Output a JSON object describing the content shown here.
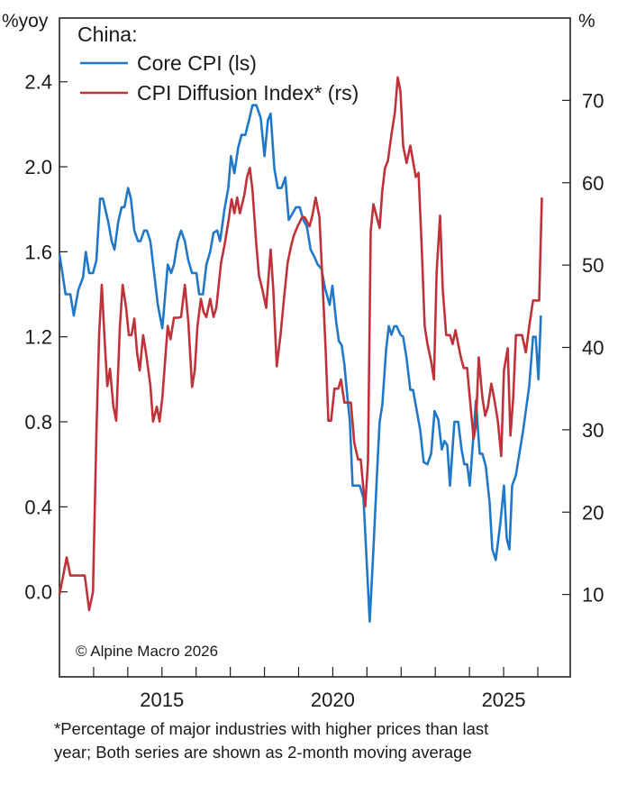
{
  "chart_data": {
    "type": "line",
    "title": "China:",
    "left_axis_unit": "%yoy",
    "right_axis_unit": "%",
    "left_ylim": [
      -0.4,
      2.7
    ],
    "right_ylim": [
      0,
      80
    ],
    "xlim": [
      2012.0,
      2026.95
    ],
    "left_ticks": [
      "0.0",
      "0.4",
      "0.8",
      "1.2",
      "1.6",
      "2.0",
      "2.4"
    ],
    "left_tick_values": [
      0.0,
      0.4,
      0.8,
      1.2,
      1.6,
      2.0,
      2.4
    ],
    "right_ticks": [
      "10",
      "20",
      "30",
      "40",
      "50",
      "60",
      "70"
    ],
    "right_tick_values": [
      10,
      20,
      30,
      40,
      50,
      60,
      70
    ],
    "x_minor_ticks": [
      2013,
      2014,
      2015,
      2016,
      2017,
      2018,
      2019,
      2020,
      2021,
      2022,
      2023,
      2024,
      2025,
      2026
    ],
    "x_labels": [
      {
        "year": 2015,
        "label": "2015"
      },
      {
        "year": 2020,
        "label": "2020"
      },
      {
        "year": 2025,
        "label": "2025"
      }
    ],
    "grid": false,
    "legend_position": "top-left",
    "copyright": "© Alpine Macro 2026",
    "series": [
      {
        "name": "Core CPI (ls)",
        "axis": "left",
        "color": "#1f78c8",
        "points": [
          [
            2012.0,
            1.59
          ],
          [
            2012.18,
            1.4
          ],
          [
            2012.32,
            1.4
          ],
          [
            2012.42,
            1.3
          ],
          [
            2012.55,
            1.42
          ],
          [
            2012.69,
            1.48
          ],
          [
            2012.77,
            1.6
          ],
          [
            2012.87,
            1.5
          ],
          [
            2012.98,
            1.5
          ],
          [
            2013.08,
            1.56
          ],
          [
            2013.19,
            1.85
          ],
          [
            2013.27,
            1.85
          ],
          [
            2013.43,
            1.74
          ],
          [
            2013.53,
            1.65
          ],
          [
            2013.61,
            1.61
          ],
          [
            2013.72,
            1.74
          ],
          [
            2013.82,
            1.81
          ],
          [
            2013.9,
            1.81
          ],
          [
            2014.01,
            1.9
          ],
          [
            2014.09,
            1.85
          ],
          [
            2014.19,
            1.7
          ],
          [
            2014.3,
            1.65
          ],
          [
            2014.37,
            1.65
          ],
          [
            2014.48,
            1.7
          ],
          [
            2014.56,
            1.7
          ],
          [
            2014.66,
            1.65
          ],
          [
            2014.77,
            1.5
          ],
          [
            2014.88,
            1.35
          ],
          [
            2015.01,
            1.24
          ],
          [
            2015.17,
            1.54
          ],
          [
            2015.27,
            1.5
          ],
          [
            2015.35,
            1.54
          ],
          [
            2015.46,
            1.65
          ],
          [
            2015.56,
            1.7
          ],
          [
            2015.67,
            1.65
          ],
          [
            2015.77,
            1.56
          ],
          [
            2015.88,
            1.5
          ],
          [
            2016.01,
            1.5
          ],
          [
            2016.09,
            1.4
          ],
          [
            2016.2,
            1.4
          ],
          [
            2016.3,
            1.54
          ],
          [
            2016.41,
            1.6
          ],
          [
            2016.51,
            1.69
          ],
          [
            2016.62,
            1.7
          ],
          [
            2016.7,
            1.65
          ],
          [
            2016.83,
            1.8
          ],
          [
            2016.94,
            1.9
          ],
          [
            2017.02,
            2.05
          ],
          [
            2017.12,
            1.97
          ],
          [
            2017.23,
            2.09
          ],
          [
            2017.33,
            2.15
          ],
          [
            2017.44,
            2.15
          ],
          [
            2017.55,
            2.22
          ],
          [
            2017.65,
            2.29
          ],
          [
            2017.76,
            2.29
          ],
          [
            2017.89,
            2.23
          ],
          [
            2018.0,
            2.05
          ],
          [
            2018.1,
            2.22
          ],
          [
            2018.18,
            2.25
          ],
          [
            2018.29,
            1.99
          ],
          [
            2018.39,
            1.9
          ],
          [
            2018.5,
            1.9
          ],
          [
            2018.61,
            1.95
          ],
          [
            2018.71,
            1.75
          ],
          [
            2018.82,
            1.78
          ],
          [
            2018.92,
            1.81
          ],
          [
            2019.03,
            1.81
          ],
          [
            2019.14,
            1.75
          ],
          [
            2019.24,
            1.72
          ],
          [
            2019.35,
            1.61
          ],
          [
            2019.45,
            1.58
          ],
          [
            2019.56,
            1.54
          ],
          [
            2019.67,
            1.52
          ],
          [
            2019.77,
            1.43
          ],
          [
            2019.91,
            1.35
          ],
          [
            2019.99,
            1.44
          ],
          [
            2020.1,
            1.27
          ],
          [
            2020.18,
            1.18
          ],
          [
            2020.26,
            1.16
          ],
          [
            2020.34,
            1.07
          ],
          [
            2020.42,
            0.93
          ],
          [
            2020.5,
            0.8
          ],
          [
            2020.58,
            0.5
          ],
          [
            2020.69,
            0.5
          ],
          [
            2020.79,
            0.5
          ],
          [
            2020.9,
            0.44
          ],
          [
            2021.08,
            -0.14
          ],
          [
            2021.19,
            0.2
          ],
          [
            2021.29,
            0.54
          ],
          [
            2021.37,
            0.8
          ],
          [
            2021.45,
            0.88
          ],
          [
            2021.56,
            1.14
          ],
          [
            2021.64,
            1.25
          ],
          [
            2021.72,
            1.21
          ],
          [
            2021.8,
            1.25
          ],
          [
            2021.87,
            1.25
          ],
          [
            2021.98,
            1.21
          ],
          [
            2022.06,
            1.2
          ],
          [
            2022.16,
            1.1
          ],
          [
            2022.27,
            0.95
          ],
          [
            2022.35,
            0.95
          ],
          [
            2022.45,
            0.86
          ],
          [
            2022.56,
            0.76
          ],
          [
            2022.66,
            0.61
          ],
          [
            2022.77,
            0.6
          ],
          [
            2022.88,
            0.65
          ],
          [
            2022.98,
            0.85
          ],
          [
            2023.09,
            0.81
          ],
          [
            2023.19,
            0.67
          ],
          [
            2023.27,
            0.71
          ],
          [
            2023.35,
            0.69
          ],
          [
            2023.43,
            0.5
          ],
          [
            2023.56,
            0.8
          ],
          [
            2023.67,
            0.8
          ],
          [
            2023.77,
            0.67
          ],
          [
            2023.85,
            0.6
          ],
          [
            2023.93,
            0.6
          ],
          [
            2024.01,
            0.5
          ],
          [
            2024.19,
            0.9
          ],
          [
            2024.3,
            0.65
          ],
          [
            2024.38,
            0.65
          ],
          [
            2024.48,
            0.59
          ],
          [
            2024.59,
            0.42
          ],
          [
            2024.67,
            0.2
          ],
          [
            2024.77,
            0.15
          ],
          [
            2024.91,
            0.33
          ],
          [
            2025.01,
            0.5
          ],
          [
            2025.09,
            0.25
          ],
          [
            2025.17,
            0.2
          ],
          [
            2025.25,
            0.5
          ],
          [
            2025.36,
            0.55
          ],
          [
            2025.57,
            0.76
          ],
          [
            2025.75,
            0.97
          ],
          [
            2025.86,
            1.2
          ],
          [
            2025.94,
            1.2
          ],
          [
            2026.02,
            1.0
          ],
          [
            2026.09,
            1.3
          ]
        ]
      },
      {
        "name": "CPI Diffusion Index* (rs)",
        "axis": "right",
        "color": "#c0323a",
        "points": [
          [
            2012.0,
            10.0
          ],
          [
            2012.11,
            12.3
          ],
          [
            2012.21,
            14.5
          ],
          [
            2012.32,
            12.3
          ],
          [
            2012.5,
            12.3
          ],
          [
            2012.74,
            12.3
          ],
          [
            2012.87,
            8.1
          ],
          [
            2012.98,
            10.3
          ],
          [
            2013.08,
            29.5
          ],
          [
            2013.16,
            41.5
          ],
          [
            2013.24,
            47.6
          ],
          [
            2013.32,
            41.0
          ],
          [
            2013.4,
            35.3
          ],
          [
            2013.48,
            37.4
          ],
          [
            2013.58,
            32.8
          ],
          [
            2013.66,
            31.1
          ],
          [
            2013.77,
            42.6
          ],
          [
            2013.85,
            47.6
          ],
          [
            2013.95,
            44.8
          ],
          [
            2014.03,
            41.5
          ],
          [
            2014.11,
            41.5
          ],
          [
            2014.19,
            43.5
          ],
          [
            2014.27,
            39.4
          ],
          [
            2014.35,
            37.2
          ],
          [
            2014.45,
            41.5
          ],
          [
            2014.53,
            39.4
          ],
          [
            2014.66,
            35.4
          ],
          [
            2014.74,
            31.0
          ],
          [
            2014.85,
            32.8
          ],
          [
            2014.93,
            31.0
          ],
          [
            2015.01,
            33.9
          ],
          [
            2015.17,
            42.6
          ],
          [
            2015.25,
            41.0
          ],
          [
            2015.35,
            43.6
          ],
          [
            2015.46,
            43.6
          ],
          [
            2015.56,
            43.7
          ],
          [
            2015.67,
            47.6
          ],
          [
            2015.77,
            43.2
          ],
          [
            2015.88,
            35.2
          ],
          [
            2015.96,
            37.2
          ],
          [
            2016.04,
            42.6
          ],
          [
            2016.14,
            45.9
          ],
          [
            2016.22,
            44.3
          ],
          [
            2016.3,
            43.7
          ],
          [
            2016.41,
            45.9
          ],
          [
            2016.51,
            43.7
          ],
          [
            2016.59,
            44.8
          ],
          [
            2016.73,
            50.3
          ],
          [
            2016.83,
            52.4
          ],
          [
            2016.94,
            55.2
          ],
          [
            2017.04,
            58.0
          ],
          [
            2017.12,
            56.3
          ],
          [
            2017.2,
            58.2
          ],
          [
            2017.28,
            56.3
          ],
          [
            2017.41,
            58.5
          ],
          [
            2017.49,
            60.7
          ],
          [
            2017.57,
            61.8
          ],
          [
            2017.65,
            59.1
          ],
          [
            2017.76,
            52.5
          ],
          [
            2017.84,
            48.7
          ],
          [
            2017.94,
            47.0
          ],
          [
            2018.05,
            44.8
          ],
          [
            2018.18,
            51.9
          ],
          [
            2018.26,
            47.0
          ],
          [
            2018.36,
            37.7
          ],
          [
            2018.47,
            41.5
          ],
          [
            2018.57,
            45.9
          ],
          [
            2018.68,
            50.3
          ],
          [
            2018.79,
            52.5
          ],
          [
            2018.86,
            53.6
          ],
          [
            2018.97,
            54.7
          ],
          [
            2019.1,
            55.8
          ],
          [
            2019.18,
            55.8
          ],
          [
            2019.32,
            54.7
          ],
          [
            2019.4,
            56.0
          ],
          [
            2019.5,
            58.2
          ],
          [
            2019.61,
            55.8
          ],
          [
            2019.71,
            47.0
          ],
          [
            2019.79,
            39.9
          ],
          [
            2019.87,
            31.1
          ],
          [
            2019.95,
            31.1
          ],
          [
            2020.05,
            35.0
          ],
          [
            2020.16,
            35.0
          ],
          [
            2020.24,
            36.1
          ],
          [
            2020.34,
            33.3
          ],
          [
            2020.45,
            33.3
          ],
          [
            2020.53,
            33.3
          ],
          [
            2020.63,
            28.4
          ],
          [
            2020.74,
            26.4
          ],
          [
            2020.82,
            26.4
          ],
          [
            2020.87,
            24.0
          ],
          [
            2020.95,
            20.7
          ],
          [
            2021.03,
            26.2
          ],
          [
            2021.11,
            54.1
          ],
          [
            2021.19,
            57.4
          ],
          [
            2021.29,
            55.8
          ],
          [
            2021.37,
            54.5
          ],
          [
            2021.45,
            59.1
          ],
          [
            2021.53,
            61.8
          ],
          [
            2021.61,
            62.6
          ],
          [
            2021.72,
            65.9
          ],
          [
            2021.82,
            68.6
          ],
          [
            2021.9,
            72.8
          ],
          [
            2021.98,
            71.1
          ],
          [
            2022.06,
            64.5
          ],
          [
            2022.16,
            62.4
          ],
          [
            2022.27,
            64.5
          ],
          [
            2022.35,
            62.6
          ],
          [
            2022.43,
            60.7
          ],
          [
            2022.51,
            61.2
          ],
          [
            2022.61,
            51.4
          ],
          [
            2022.69,
            42.6
          ],
          [
            2022.77,
            40.4
          ],
          [
            2022.88,
            38.3
          ],
          [
            2022.96,
            36.1
          ],
          [
            2023.04,
            49.2
          ],
          [
            2023.14,
            56.0
          ],
          [
            2023.22,
            47.0
          ],
          [
            2023.32,
            41.5
          ],
          [
            2023.43,
            41.5
          ],
          [
            2023.51,
            40.4
          ],
          [
            2023.59,
            42.1
          ],
          [
            2023.67,
            40.4
          ],
          [
            2023.75,
            38.8
          ],
          [
            2023.83,
            37.5
          ],
          [
            2023.93,
            37.5
          ],
          [
            2024.01,
            33.9
          ],
          [
            2024.12,
            28.9
          ],
          [
            2024.19,
            30.6
          ],
          [
            2024.27,
            38.8
          ],
          [
            2024.38,
            33.9
          ],
          [
            2024.46,
            31.7
          ],
          [
            2024.54,
            32.8
          ],
          [
            2024.64,
            35.6
          ],
          [
            2024.72,
            33.9
          ],
          [
            2024.83,
            31.1
          ],
          [
            2024.93,
            26.8
          ],
          [
            2025.01,
            37.2
          ],
          [
            2025.12,
            39.9
          ],
          [
            2025.2,
            29.3
          ],
          [
            2025.28,
            33.9
          ],
          [
            2025.36,
            41.5
          ],
          [
            2025.46,
            41.5
          ],
          [
            2025.54,
            41.5
          ],
          [
            2025.65,
            39.4
          ],
          [
            2025.75,
            42.6
          ],
          [
            2025.86,
            45.7
          ],
          [
            2025.96,
            45.7
          ],
          [
            2026.04,
            45.7
          ],
          [
            2026.12,
            58.2
          ]
        ]
      }
    ]
  },
  "footnote": {
    "line1": "*Percentage of major industries with higher prices than last",
    "line2": "year; Both series are shown as 2-month moving average"
  }
}
